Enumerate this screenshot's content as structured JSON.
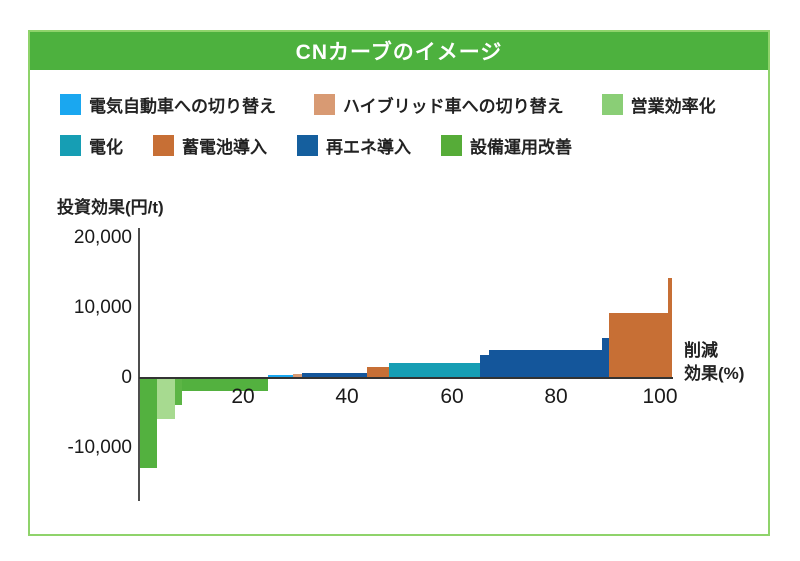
{
  "header": {
    "title": "CNカーブのイメージ",
    "background_color": "#4db13e",
    "text_color": "#ffffff",
    "card_border_color": "#8fd36b"
  },
  "legend": {
    "row1": [
      {
        "name": "legend-ev",
        "label": "電気自動車への切り替え",
        "color": "#1aa7f0"
      },
      {
        "name": "legend-hybrid",
        "label": "ハイブリッド車への切り替え",
        "color": "#d89a73"
      },
      {
        "name": "legend-sales-efficiency",
        "label": "営業効率化",
        "color": "#8ace76"
      }
    ],
    "row2": [
      {
        "name": "legend-electrification",
        "label": "電化",
        "color": "#169eb4"
      },
      {
        "name": "legend-battery",
        "label": "蓄電池導入",
        "color": "#c76f35"
      },
      {
        "name": "legend-renewable",
        "label": "再エネ導入",
        "color": "#155f9e"
      },
      {
        "name": "legend-equipment-operation",
        "label": "設備運用改善",
        "color": "#56ac38"
      }
    ]
  },
  "chart_data": {
    "type": "bar",
    "variant": "macc-cost-curve",
    "title": "CNカーブのイメージ",
    "xlabel": "削減効果(%)",
    "xlabel_display": "削減\n効果(%)",
    "ylabel": "投資効果(円/t)",
    "xlim": [
      0,
      103
    ],
    "ylim": [
      -14500,
      21500
    ],
    "grid": false,
    "legend_position": "top",
    "x_ticks": [
      20,
      40,
      60,
      80,
      100
    ],
    "y_ticks": [
      {
        "label": "20,000",
        "value": 20000
      },
      {
        "label": "10,000",
        "value": 10000
      },
      {
        "label": "0",
        "value": 0
      },
      {
        "label": "-10,000",
        "value": -10000
      }
    ],
    "segments": [
      {
        "category": "設備運用改善",
        "color": "#53b13f",
        "x_start_pct": 0.2,
        "x_end_pct": 3.5,
        "value_yen_per_t": -13000
      },
      {
        "category": "営業効率化",
        "color": "#a7da90",
        "x_start_pct": 3.5,
        "x_end_pct": 6.9,
        "value_yen_per_t": -6000
      },
      {
        "category": "設備運用改善",
        "color": "#5cb545",
        "x_start_pct": 6.9,
        "x_end_pct": 8.3,
        "value_yen_per_t": -4000
      },
      {
        "category": "設備運用改善",
        "color": "#53b13f",
        "x_start_pct": 8.3,
        "x_end_pct": 24.8,
        "value_yen_per_t": -2000
      },
      {
        "category": "電気自動車への切り替え",
        "color": "#1aa7f0",
        "x_start_pct": 24.8,
        "x_end_pct": 29.6,
        "value_yen_per_t": 300
      },
      {
        "category": "ハイブリッド車への切り替え",
        "color": "#d89a73",
        "x_start_pct": 29.6,
        "x_end_pct": 31.3,
        "value_yen_per_t": 430
      },
      {
        "category": "再エネ導入",
        "color": "#14569b",
        "x_start_pct": 31.3,
        "x_end_pct": 43.8,
        "value_yen_per_t": 550
      },
      {
        "category": "蓄電池導入",
        "color": "#c76f35",
        "x_start_pct": 43.8,
        "x_end_pct": 48.0,
        "value_yen_per_t": 1400
      },
      {
        "category": "電化",
        "color": "#169eb4",
        "x_start_pct": 48.0,
        "x_end_pct": 65.4,
        "value_yen_per_t": 2000
      },
      {
        "category": "再エネ導入",
        "color": "#14569b",
        "x_start_pct": 65.4,
        "x_end_pct": 67.2,
        "value_yen_per_t": 3100
      },
      {
        "category": "再エネ導入",
        "color": "#14569b",
        "x_start_pct": 67.2,
        "x_end_pct": 88.9,
        "value_yen_per_t": 3800
      },
      {
        "category": "再エネ導入",
        "color": "#14569b",
        "x_start_pct": 88.9,
        "x_end_pct": 90.2,
        "value_yen_per_t": 5600
      },
      {
        "category": "蓄電池導入",
        "color": "#c76f35",
        "x_start_pct": 90.2,
        "x_end_pct": 101.6,
        "value_yen_per_t": 9100
      },
      {
        "category": "蓄電池導入",
        "color": "#c76f35",
        "x_start_pct": 101.6,
        "x_end_pct": 102.4,
        "value_yen_per_t": 14100
      }
    ]
  }
}
